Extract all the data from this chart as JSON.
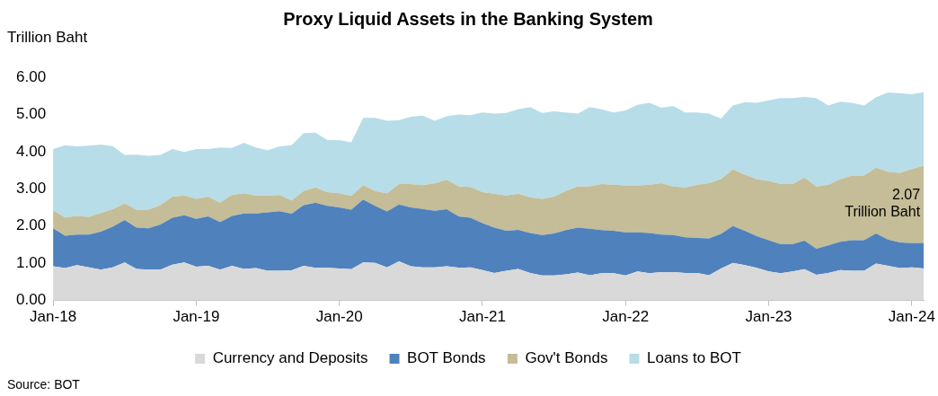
{
  "chart_data": {
    "type": "area",
    "title": "Proxy Liquid Assets in the Banking System",
    "ylabel": "Trillion Baht",
    "stacked": true,
    "grid": false,
    "legend": "bottom",
    "marker": "none",
    "x": [
      "2018-01",
      "2018-02",
      "2018-03",
      "2018-04",
      "2018-05",
      "2018-06",
      "2018-07",
      "2018-08",
      "2018-09",
      "2018-10",
      "2018-11",
      "2018-12",
      "2019-01",
      "2019-02",
      "2019-03",
      "2019-04",
      "2019-05",
      "2019-06",
      "2019-07",
      "2019-08",
      "2019-09",
      "2019-10",
      "2019-11",
      "2019-12",
      "2020-01",
      "2020-02",
      "2020-03",
      "2020-04",
      "2020-05",
      "2020-06",
      "2020-07",
      "2020-08",
      "2020-09",
      "2020-10",
      "2020-11",
      "2020-12",
      "2021-01",
      "2021-02",
      "2021-03",
      "2021-04",
      "2021-05",
      "2021-06",
      "2021-07",
      "2021-08",
      "2021-09",
      "2021-10",
      "2021-11",
      "2021-12",
      "2022-01",
      "2022-02",
      "2022-03",
      "2022-04",
      "2022-05",
      "2022-06",
      "2022-07",
      "2022-08",
      "2022-09",
      "2022-10",
      "2022-11",
      "2022-12",
      "2023-01",
      "2023-02",
      "2023-03",
      "2023-04",
      "2023-05",
      "2023-06",
      "2023-07",
      "2023-08",
      "2023-09",
      "2023-10",
      "2023-11",
      "2023-12",
      "2024-01",
      "2024-02"
    ],
    "xlim": [
      "2018-01",
      "2024-02"
    ],
    "xticks": [
      {
        "value": "2018-01",
        "label": "Jan-18"
      },
      {
        "value": "2019-01",
        "label": "Jan-19"
      },
      {
        "value": "2020-01",
        "label": "Jan-20"
      },
      {
        "value": "2021-01",
        "label": "Jan-21"
      },
      {
        "value": "2022-01",
        "label": "Jan-22"
      },
      {
        "value": "2023-01",
        "label": "Jan-23"
      },
      {
        "value": "2024-01",
        "label": "Jan-24"
      }
    ],
    "ylim": [
      0,
      6
    ],
    "yticks": [
      {
        "value": 0,
        "label": "0.00"
      },
      {
        "value": 1,
        "label": "1.00"
      },
      {
        "value": 2,
        "label": "2.00"
      },
      {
        "value": 3,
        "label": "3.00"
      },
      {
        "value": 4,
        "label": "4.00"
      },
      {
        "value": 5,
        "label": "5.00"
      },
      {
        "value": 6,
        "label": "6.00"
      }
    ],
    "series": [
      {
        "name": "Currency and Deposits",
        "color": "#d9d9d9",
        "values": [
          0.92,
          0.87,
          0.95,
          0.89,
          0.83,
          0.89,
          1.02,
          0.85,
          0.83,
          0.83,
          0.96,
          1.02,
          0.91,
          0.93,
          0.83,
          0.93,
          0.85,
          0.87,
          0.8,
          0.8,
          0.81,
          0.93,
          0.88,
          0.88,
          0.86,
          0.84,
          1.02,
          1.01,
          0.89,
          1.05,
          0.92,
          0.89,
          0.89,
          0.92,
          0.88,
          0.89,
          0.82,
          0.74,
          0.8,
          0.85,
          0.74,
          0.67,
          0.67,
          0.7,
          0.75,
          0.68,
          0.73,
          0.73,
          0.67,
          0.78,
          0.73,
          0.76,
          0.76,
          0.74,
          0.74,
          0.68,
          0.86,
          1.01,
          0.95,
          0.88,
          0.78,
          0.73,
          0.78,
          0.84,
          0.69,
          0.74,
          0.82,
          0.8,
          0.8,
          0.99,
          0.93,
          0.87,
          0.89,
          0.86
        ]
      },
      {
        "name": "BOT Bonds",
        "color": "#4f81bd",
        "values": [
          1.02,
          0.87,
          0.82,
          0.88,
          1.02,
          1.09,
          1.14,
          1.11,
          1.11,
          1.21,
          1.26,
          1.27,
          1.28,
          1.33,
          1.28,
          1.34,
          1.49,
          1.47,
          1.57,
          1.6,
          1.52,
          1.63,
          1.75,
          1.66,
          1.64,
          1.6,
          1.69,
          1.53,
          1.5,
          1.53,
          1.58,
          1.57,
          1.52,
          1.53,
          1.38,
          1.33,
          1.26,
          1.22,
          1.07,
          1.05,
          1.07,
          1.09,
          1.13,
          1.19,
          1.21,
          1.25,
          1.16,
          1.14,
          1.16,
          1.05,
          1.08,
          1.01,
          1.0,
          0.96,
          0.94,
          0.99,
          0.93,
          0.99,
          0.92,
          0.85,
          0.84,
          0.78,
          0.73,
          0.77,
          0.7,
          0.74,
          0.76,
          0.82,
          0.82,
          0.81,
          0.71,
          0.69,
          0.65,
          0.69
        ]
      },
      {
        "name": "Gov't Bonds",
        "color": "#c4bd97",
        "values": [
          0.48,
          0.49,
          0.5,
          0.48,
          0.5,
          0.47,
          0.45,
          0.48,
          0.5,
          0.52,
          0.57,
          0.53,
          0.54,
          0.53,
          0.52,
          0.57,
          0.54,
          0.48,
          0.45,
          0.43,
          0.36,
          0.38,
          0.41,
          0.37,
          0.38,
          0.37,
          0.39,
          0.4,
          0.49,
          0.55,
          0.63,
          0.64,
          0.74,
          0.79,
          0.81,
          0.83,
          0.83,
          0.91,
          0.95,
          0.97,
          0.96,
          0.97,
          0.99,
          1.05,
          1.11,
          1.14,
          1.24,
          1.24,
          1.26,
          1.26,
          1.3,
          1.38,
          1.3,
          1.34,
          1.43,
          1.48,
          1.47,
          1.52,
          1.51,
          1.53,
          1.59,
          1.62,
          1.62,
          1.69,
          1.67,
          1.63,
          1.68,
          1.74,
          1.74,
          1.77,
          1.82,
          1.87,
          1.99,
          2.07
        ]
      },
      {
        "name": "Loans to BOT",
        "color": "#b7dde8",
        "values": [
          1.65,
          1.94,
          1.87,
          1.91,
          1.84,
          1.7,
          1.3,
          1.48,
          1.45,
          1.35,
          1.28,
          1.17,
          1.34,
          1.28,
          1.48,
          1.26,
          1.36,
          1.29,
          1.22,
          1.31,
          1.48,
          1.56,
          1.47,
          1.4,
          1.43,
          1.44,
          1.81,
          1.97,
          1.95,
          1.72,
          1.81,
          1.87,
          1.68,
          1.71,
          1.93,
          1.93,
          2.14,
          2.15,
          2.22,
          2.27,
          2.43,
          2.31,
          2.29,
          2.11,
          1.95,
          2.13,
          2.01,
          1.94,
          2.02,
          2.17,
          2.2,
          2.03,
          2.17,
          2.01,
          1.94,
          1.87,
          1.63,
          1.72,
          1.95,
          2.05,
          2.17,
          2.31,
          2.31,
          2.17,
          2.38,
          2.13,
          2.08,
          1.95,
          1.88,
          1.89,
          2.13,
          2.14,
          2.01,
          1.98
        ]
      }
    ],
    "annotations": [
      {
        "text": "2.07\nTrillion Baht",
        "x": "2024-02",
        "y": 2.59
      },
      "Source: BOT"
    ]
  }
}
